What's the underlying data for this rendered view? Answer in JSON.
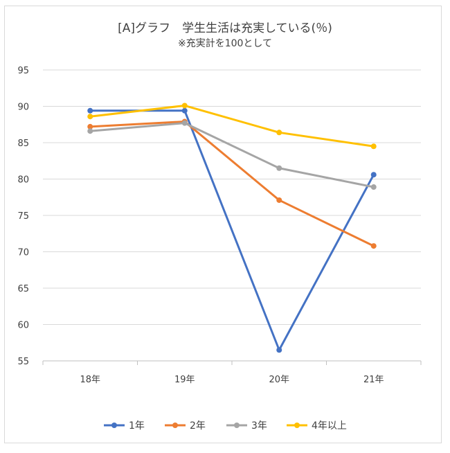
{
  "chart_data": {
    "type": "line",
    "title": "[A]グラフ　学生生活は充実している(％)",
    "subtitle": "※充実計を100として",
    "categories": [
      "18年",
      "19年",
      "20年",
      "21年"
    ],
    "ylim": [
      55,
      95
    ],
    "yticks": [
      55,
      60,
      65,
      70,
      75,
      80,
      85,
      90,
      95
    ],
    "grid": true,
    "legend_position": "bottom",
    "series": [
      {
        "name": "1年",
        "color": "#4472C4",
        "values": [
          89.4,
          89.4,
          56.5,
          80.6
        ]
      },
      {
        "name": "2年",
        "color": "#ED7D31",
        "values": [
          87.2,
          87.9,
          77.1,
          70.8
        ]
      },
      {
        "name": "3年",
        "color": "#A5A5A5",
        "values": [
          86.6,
          87.7,
          81.5,
          78.9
        ]
      },
      {
        "name": "4年以上",
        "color": "#FFC000",
        "values": [
          88.6,
          90.1,
          86.4,
          84.5
        ]
      }
    ]
  }
}
